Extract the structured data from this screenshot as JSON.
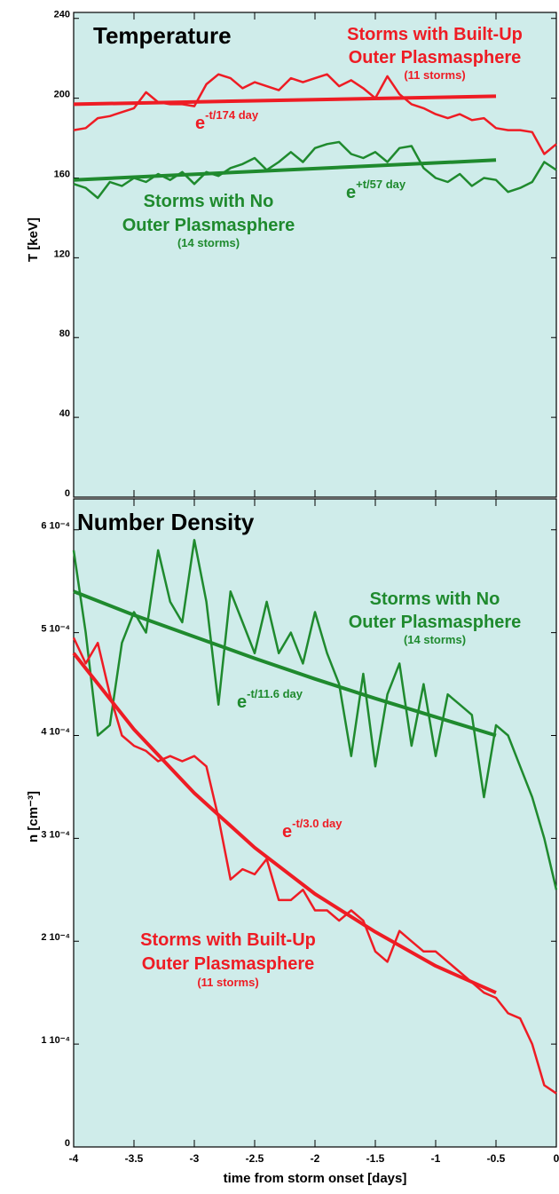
{
  "chart_data": [
    {
      "type": "line",
      "title": "Temperature",
      "ylabel": "T   [keV]",
      "xlim": [
        -4,
        0
      ],
      "xticks": [
        -4,
        -3.5,
        -3,
        -2.5,
        -2,
        -1.5,
        -1,
        -0.5,
        0
      ],
      "ylim": [
        0,
        243
      ],
      "yticks": [
        0,
        40,
        80,
        120,
        160,
        200,
        240
      ],
      "series": [
        {
          "color": "#ee1c24",
          "x": [
            -4,
            -3.9,
            -3.8,
            -3.7,
            -3.6,
            -3.5,
            -3.4,
            -3.3,
            -3.2,
            -3.1,
            -3,
            -2.9,
            -2.8,
            -2.7,
            -2.6,
            -2.5,
            -2.4,
            -2.3,
            -2.2,
            -2.1,
            -2,
            -1.9,
            -1.8,
            -1.7,
            -1.6,
            -1.5,
            -1.4,
            -1.3,
            -1.2,
            -1.1,
            -1,
            -0.9,
            -0.8,
            -0.7,
            -0.6,
            -0.5,
            -0.4,
            -0.3,
            -0.2,
            -0.1,
            0
          ],
          "values": [
            184,
            185,
            190,
            191,
            193,
            195,
            203,
            198,
            197,
            197,
            196,
            207,
            212,
            210,
            205,
            208,
            206,
            204,
            210,
            208,
            210,
            212,
            206,
            209,
            205,
            200,
            211,
            202,
            197,
            195,
            192,
            190,
            192,
            189,
            190,
            185,
            184,
            184,
            183,
            172,
            177
          ]
        },
        {
          "color": "#ee1c24",
          "x": [
            -4,
            -0.5
          ],
          "values": [
            197,
            201
          ]
        },
        {
          "color": "#1f8a2e",
          "x": [
            -4,
            -3.9,
            -3.8,
            -3.7,
            -3.6,
            -3.5,
            -3.4,
            -3.3,
            -3.2,
            -3.1,
            -3,
            -2.9,
            -2.8,
            -2.7,
            -2.6,
            -2.5,
            -2.4,
            -2.3,
            -2.2,
            -2.1,
            -2,
            -1.9,
            -1.8,
            -1.7,
            -1.6,
            -1.5,
            -1.4,
            -1.3,
            -1.2,
            -1.1,
            -1,
            -0.9,
            -0.8,
            -0.7,
            -0.6,
            -0.5,
            -0.4,
            -0.3,
            -0.2,
            -0.1,
            0
          ],
          "values": [
            157,
            155,
            150,
            158,
            156,
            160,
            158,
            162,
            159,
            163,
            157,
            163,
            161,
            165,
            167,
            170,
            164,
            168,
            173,
            168,
            175,
            177,
            178,
            172,
            170,
            173,
            168,
            175,
            176,
            165,
            160,
            158,
            162,
            156,
            160,
            159,
            153,
            155,
            158,
            168,
            164
          ]
        },
        {
          "color": "#1f8a2e",
          "x": [
            -4,
            -0.5
          ],
          "values": [
            159,
            169
          ]
        }
      ],
      "annotations": [
        {
          "text": "Storms with Built-Up"
        },
        {
          "text": "Outer Plasmasphere"
        },
        {
          "text": "(11 storms)"
        },
        {
          "text": "e",
          "sup": "-t/174 day"
        },
        {
          "text": "Storms with No"
        },
        {
          "text": "Outer Plasmasphere"
        },
        {
          "text": "(14 storms)"
        },
        {
          "text": "e",
          "sup": "+t/57 day"
        }
      ]
    },
    {
      "type": "line",
      "title": "Number Density",
      "ylabel": "n  [cm⁻³]",
      "xlabel": "time from storm onset  [days]",
      "xlim": [
        -4,
        0
      ],
      "xticks": [
        -4,
        -3.5,
        -3,
        -2.5,
        -2,
        -1.5,
        -1,
        -0.5,
        0
      ],
      "ylim": [
        0,
        0.00063
      ],
      "yticks": [
        0,
        {
          "value": 0.0001,
          "label": "1 10⁻⁴"
        },
        {
          "value": 0.0002,
          "label": "2 10⁻⁴"
        },
        {
          "value": 0.0003,
          "label": "3 10⁻⁴"
        },
        {
          "value": 0.0004,
          "label": "4 10⁻⁴"
        },
        {
          "value": 0.0005,
          "label": "5 10⁻⁴"
        },
        {
          "value": 0.0006,
          "label": "6 10⁻⁴"
        }
      ],
      "series": [
        {
          "color": "#1f8a2e",
          "x": [
            -4,
            -3.9,
            -3.8,
            -3.7,
            -3.6,
            -3.5,
            -3.4,
            -3.3,
            -3.2,
            -3.1,
            -3,
            -2.9,
            -2.8,
            -2.7,
            -2.6,
            -2.5,
            -2.4,
            -2.3,
            -2.2,
            -2.1,
            -2,
            -1.9,
            -1.8,
            -1.7,
            -1.6,
            -1.5,
            -1.4,
            -1.3,
            -1.2,
            -1.1,
            -1,
            -0.9,
            -0.8,
            -0.7,
            -0.6,
            -0.5,
            -0.4,
            -0.3,
            -0.2,
            -0.1,
            0
          ],
          "values": [
            0.00058,
            0.0005,
            0.0004,
            0.00041,
            0.00049,
            0.00052,
            0.0005,
            0.00058,
            0.00053,
            0.00051,
            0.00059,
            0.00053,
            0.00043,
            0.00054,
            0.00051,
            0.00048,
            0.00053,
            0.00048,
            0.0005,
            0.00047,
            0.00052,
            0.00048,
            0.00045,
            0.00038,
            0.00046,
            0.00037,
            0.00044,
            0.00047,
            0.00039,
            0.00045,
            0.00038,
            0.00044,
            0.00043,
            0.00042,
            0.00034,
            0.00041,
            0.0004,
            0.00037,
            0.00034,
            0.0003,
            0.00025
          ]
        },
        {
          "color": "#1f8a2e",
          "x": [
            -4,
            -3.5,
            -3,
            -2.5,
            -2,
            -1.5,
            -1,
            -0.5
          ],
          "values": [
            0.00054,
            0.000517,
            0.000496,
            0.000475,
            0.000455,
            0.000436,
            0.000418,
            0.0004
          ]
        },
        {
          "color": "#ee1c24",
          "x": [
            -4,
            -3.9,
            -3.8,
            -3.7,
            -3.6,
            -3.5,
            -3.4,
            -3.3,
            -3.2,
            -3.1,
            -3,
            -2.9,
            -2.8,
            -2.7,
            -2.6,
            -2.5,
            -2.4,
            -2.3,
            -2.2,
            -2.1,
            -2,
            -1.9,
            -1.8,
            -1.7,
            -1.6,
            -1.5,
            -1.4,
            -1.3,
            -1.2,
            -1.1,
            -1,
            -0.9,
            -0.8,
            -0.7,
            -0.6,
            -0.5,
            -0.4,
            -0.3,
            -0.2,
            -0.1,
            0
          ],
          "values": [
            0.000495,
            0.00047,
            0.00049,
            0.00044,
            0.0004,
            0.00039,
            0.000385,
            0.000375,
            0.00038,
            0.000375,
            0.00038,
            0.00037,
            0.00032,
            0.00026,
            0.00027,
            0.000265,
            0.00028,
            0.00024,
            0.00024,
            0.00025,
            0.00023,
            0.00023,
            0.00022,
            0.00023,
            0.00022,
            0.00019,
            0.00018,
            0.00021,
            0.0002,
            0.00019,
            0.00019,
            0.00018,
            0.00017,
            0.00016,
            0.00015,
            0.000145,
            0.00013,
            0.000125,
            0.0001,
            6e-05,
            5.2e-05
          ]
        },
        {
          "color": "#ee1c24",
          "x": [
            -4,
            -3.5,
            -3,
            -2.5,
            -2,
            -1.5,
            -1,
            -0.5
          ],
          "values": [
            0.00048,
            0.000406,
            0.000344,
            0.000291,
            0.000246,
            0.000209,
            0.000176,
            0.00015
          ]
        }
      ],
      "annotations": [
        {
          "text": "Storms with No"
        },
        {
          "text": "Outer Plasmasphere"
        },
        {
          "text": "(14 storms)"
        },
        {
          "text": "e",
          "sup": "-t/11.6 day"
        },
        {
          "text": "e",
          "sup": "-t/3.0 day"
        },
        {
          "text": "Storms with Built-Up"
        },
        {
          "text": "Outer Plasmasphere"
        },
        {
          "text": "(11 storms)"
        }
      ]
    }
  ]
}
